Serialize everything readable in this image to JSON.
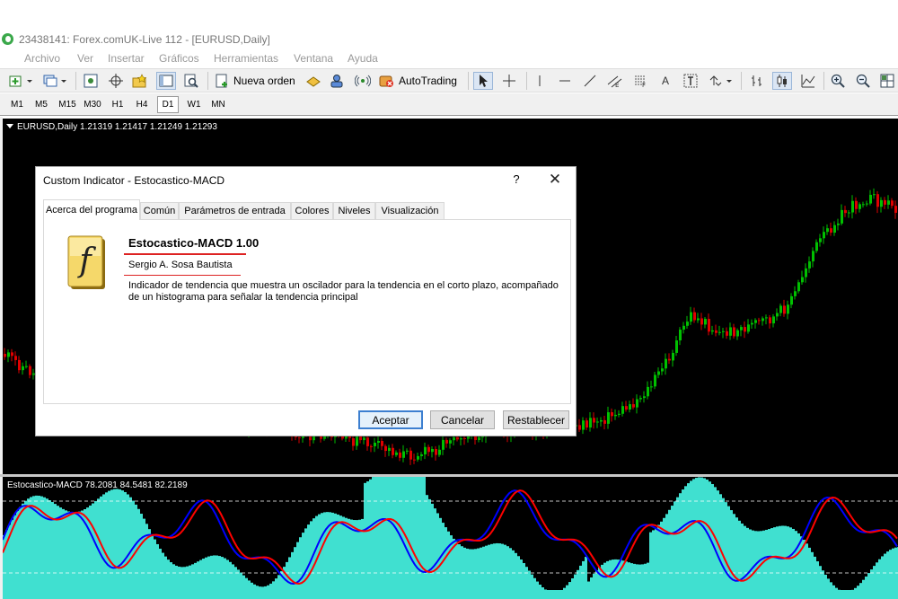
{
  "window": {
    "title": "23438141: Forex.comUK-Live 112 - [EURUSD,Daily]"
  },
  "menu": [
    "Archivo",
    "Ver",
    "Insertar",
    "Gráficos",
    "Herramientas",
    "Ventana",
    "Ayuda"
  ],
  "toolbar": {
    "new_order": "Nueva orden",
    "autotrading": "AutoTrading",
    "text_tool": "A"
  },
  "timeframes": [
    "M1",
    "M5",
    "M15",
    "M30",
    "H1",
    "H4",
    "D1",
    "W1",
    "MN"
  ],
  "active_timeframe": "D1",
  "main_chart": {
    "label": "EURUSD,Daily  1.21319 1.21417 1.21249 1.21293"
  },
  "indicator_chart": {
    "label": "Estocastico-MACD 78.2081 84.5481 82.2189"
  },
  "dialog": {
    "title": "Custom Indicator - Estocastico-MACD",
    "help": "?",
    "close": "✕",
    "tabs": [
      "Acerca del programa",
      "Común",
      "Parámetros de entrada",
      "Colores",
      "Niveles",
      "Visualización"
    ],
    "active_tab": "Acerca del programa",
    "program_name": "Estocastico-MACD 1.00",
    "author": "Sergio A. Sosa Bautista",
    "description": "Indicador de tendencia que muestra un oscilador para la tendencia en el corto plazo, acompañado de un histograma para señalar la tendencia principal",
    "buttons": {
      "ok": "Aceptar",
      "cancel": "Cancelar",
      "reset": "Restablecer"
    }
  },
  "colors": {
    "bull_candle": "#00c000",
    "bear_candle": "#e00000",
    "histogram": "#40e0d0",
    "signal_fast": "#0000ff",
    "signal_slow": "#ff0000"
  }
}
